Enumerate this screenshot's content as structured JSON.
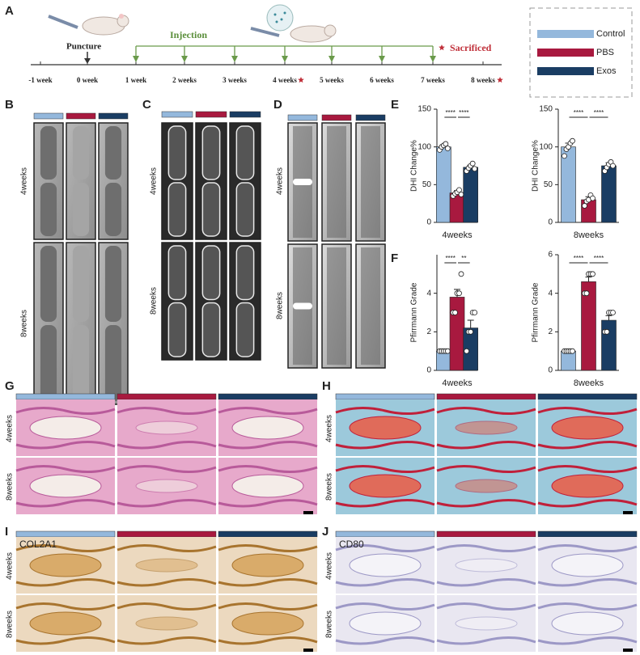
{
  "panel_labels": [
    "A",
    "B",
    "C",
    "D",
    "E",
    "F",
    "G",
    "H",
    "I",
    "J"
  ],
  "timeline": {
    "puncture": "Puncture",
    "injection": "Injection",
    "sacrificed": "Sacrificed",
    "ticks": [
      "-1 week",
      "0 week",
      "1 week",
      "2 weeks",
      "3 weeks",
      "4 weeks",
      "5 weeks",
      "6 weeks",
      "7 weeks",
      "8 weeks"
    ]
  },
  "row_labels": [
    "4weeks",
    "8weeks"
  ],
  "stain_labels": [
    "COL2A1",
    "CD80"
  ],
  "chart_data": [
    {
      "type": "bar",
      "ylabel": "DHI Change%",
      "categories": [
        "4weeks"
      ],
      "ylim": [
        0,
        150
      ],
      "yticks": [
        0,
        50,
        100,
        150
      ],
      "annotations": [
        "****",
        "****"
      ],
      "series": [
        {
          "name": "Control",
          "color": "#94b8dc",
          "values": [
            100
          ],
          "errors": [
            3
          ],
          "points": [
            [
              96,
              100,
              102,
              104,
              98
            ]
          ]
        },
        {
          "name": "PBS",
          "color": "#a8193f",
          "values": [
            39
          ],
          "errors": [
            3
          ],
          "points": [
            [
              35,
              38,
              40,
              43,
              37
            ]
          ]
        },
        {
          "name": "Exos",
          "color": "#1a3d63",
          "values": [
            73
          ],
          "errors": [
            3
          ],
          "points": [
            [
              68,
              72,
              75,
              78,
              71
            ]
          ]
        }
      ]
    },
    {
      "type": "bar",
      "ylabel": "DHI Change%",
      "categories": [
        "8weeks"
      ],
      "ylim": [
        0,
        150
      ],
      "yticks": [
        0,
        50,
        100,
        150
      ],
      "annotations": [
        "****",
        "****"
      ],
      "series": [
        {
          "name": "Control",
          "color": "#94b8dc",
          "values": [
            100
          ],
          "errors": [
            5
          ],
          "points": [
            [
              88,
              97,
              100,
              105,
              108
            ]
          ]
        },
        {
          "name": "PBS",
          "color": "#a8193f",
          "values": [
            30
          ],
          "errors": [
            4
          ],
          "points": [
            [
              22,
              28,
              30,
              36,
              32
            ]
          ]
        },
        {
          "name": "Exos",
          "color": "#1a3d63",
          "values": [
            75
          ],
          "errors": [
            4
          ],
          "points": [
            [
              68,
              73,
              77,
              80,
              75
            ]
          ]
        }
      ]
    },
    {
      "type": "bar",
      "ylabel": "Pfirrmann Grade",
      "categories": [
        "4weeks"
      ],
      "ylim": [
        0,
        6
      ],
      "yticks": [
        0,
        2,
        4
      ],
      "annotations": [
        "****",
        "**"
      ],
      "series": [
        {
          "name": "Control",
          "color": "#94b8dc",
          "values": [
            1
          ],
          "errors": [
            0
          ],
          "points": [
            [
              1,
              1,
              1,
              1,
              1
            ]
          ]
        },
        {
          "name": "PBS",
          "color": "#a8193f",
          "values": [
            3.8
          ],
          "errors": [
            0.4
          ],
          "points": [
            [
              3,
              3,
              4,
              4,
              5
            ]
          ]
        },
        {
          "name": "Exos",
          "color": "#1a3d63",
          "values": [
            2.2
          ],
          "errors": [
            0.4
          ],
          "points": [
            [
              1,
              2,
              2,
              3,
              3
            ]
          ]
        }
      ]
    },
    {
      "type": "bar",
      "ylabel": "Pfirrmann Grade",
      "categories": [
        "8weeks"
      ],
      "ylim": [
        0,
        6
      ],
      "yticks": [
        0,
        2,
        4,
        6
      ],
      "annotations": [
        "****",
        "****"
      ],
      "series": [
        {
          "name": "Control",
          "color": "#94b8dc",
          "values": [
            1
          ],
          "errors": [
            0
          ],
          "points": [
            [
              1,
              1,
              1,
              1,
              1
            ]
          ]
        },
        {
          "name": "PBS",
          "color": "#a8193f",
          "values": [
            4.6
          ],
          "errors": [
            0.24
          ],
          "points": [
            [
              4,
              4,
              5,
              5,
              5
            ]
          ]
        },
        {
          "name": "Exos",
          "color": "#1a3d63",
          "values": [
            2.6
          ],
          "errors": [
            0.24
          ],
          "points": [
            [
              2,
              2,
              3,
              3,
              3
            ]
          ]
        }
      ]
    }
  ]
}
